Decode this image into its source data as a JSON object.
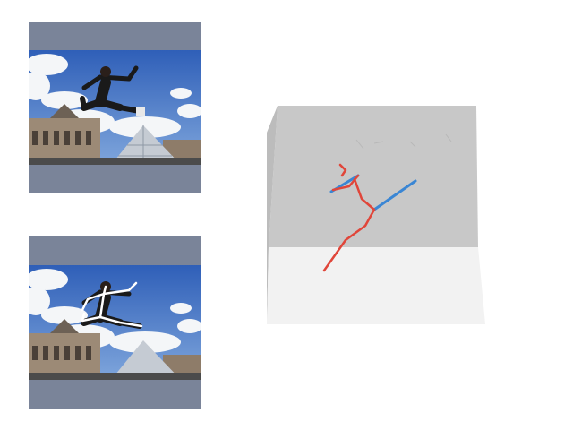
{
  "panels": [
    {
      "name": "input-photo",
      "description_visible_text": ""
    },
    {
      "name": "photo-with-2d-skeleton",
      "description_visible_text": ""
    }
  ],
  "scene3d": {
    "wall_color": "#c8c8c8",
    "floor_color": "#f2f2f2",
    "skeleton_colors": {
      "right": "#e0463a",
      "left": "#3a86d4"
    }
  },
  "colors": {
    "frame": "#7a8499",
    "sky": "#3a6fc4",
    "skeleton_2d": "#ffffff"
  }
}
